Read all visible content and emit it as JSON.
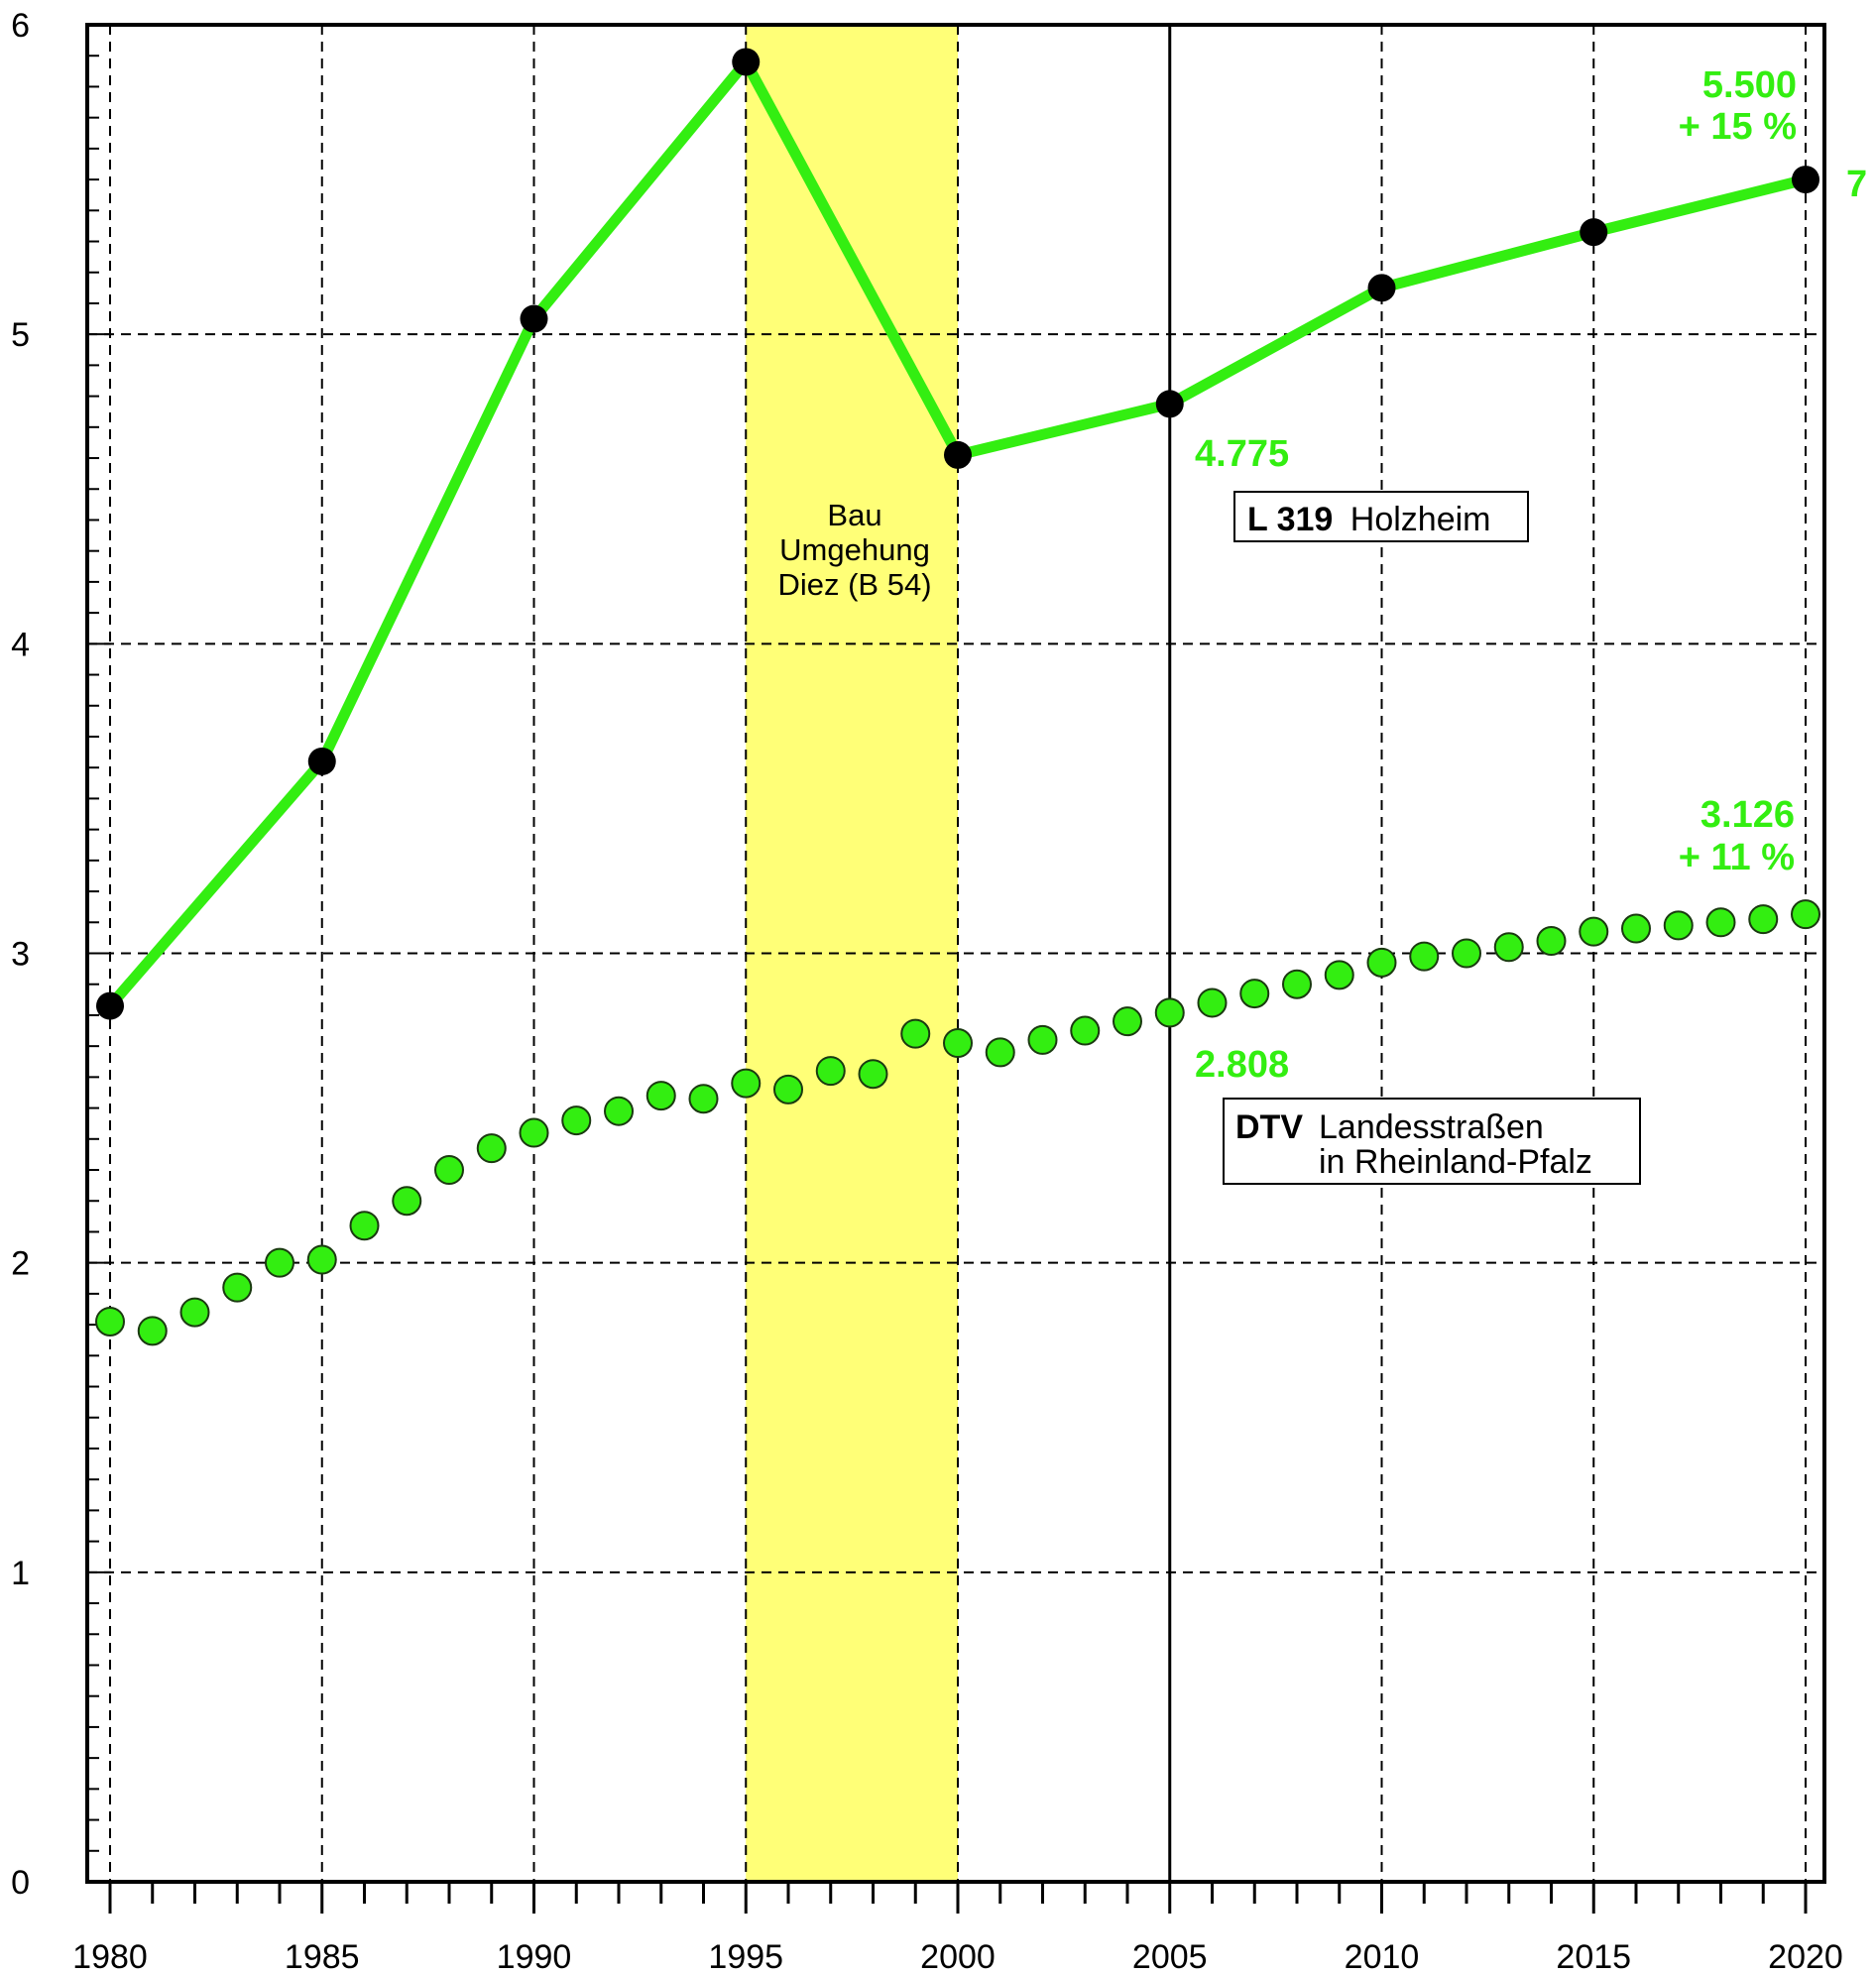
{
  "chart_data": {
    "type": "line",
    "xlim": [
      1980,
      2020
    ],
    "ylim": [
      0,
      6
    ],
    "grid": true,
    "x_ticks": [
      1980,
      1985,
      1990,
      1995,
      2000,
      2005,
      2010,
      2015,
      2020
    ],
    "y_ticks": [
      0,
      1,
      2,
      3,
      4,
      5,
      6
    ],
    "x_tick_labels": [
      "1980",
      "1985",
      "1990",
      "1995",
      "2000",
      "2005",
      "2010",
      "2015",
      "2020"
    ],
    "y_tick_labels": [
      "0",
      "1",
      "2",
      "3",
      "4",
      "5",
      "6"
    ],
    "shaded_band": {
      "from": 1995,
      "to": 2000,
      "color": "#ffff77",
      "label_lines": [
        "Bau",
        "Umgehung",
        "Diez (B 54)"
      ]
    },
    "series": [
      {
        "name": "L 319 Holzheim",
        "style": "line-with-markers",
        "color": "#33ee11",
        "marker_color": "#000000",
        "x": [
          1980,
          1985,
          1990,
          1995,
          2000,
          2005,
          2010,
          2015,
          2020
        ],
        "y": [
          2.83,
          3.62,
          5.05,
          5.88,
          4.61,
          4.775,
          5.15,
          5.33,
          5.5
        ]
      },
      {
        "name": "DTV Landesstraßen in Rheinland-Pfalz",
        "style": "dots",
        "color": "#33ee11",
        "x": [
          1980,
          1981,
          1982,
          1983,
          1984,
          1985,
          1986,
          1987,
          1988,
          1989,
          1990,
          1991,
          1992,
          1993,
          1994,
          1995,
          1996,
          1997,
          1998,
          1999,
          2000,
          2001,
          2002,
          2003,
          2004,
          2005,
          2006,
          2007,
          2008,
          2009,
          2010,
          2011,
          2012,
          2013,
          2014,
          2015,
          2016,
          2017,
          2018,
          2019,
          2020
        ],
        "y": [
          1.81,
          1.78,
          1.84,
          1.92,
          2.0,
          2.01,
          2.12,
          2.2,
          2.3,
          2.37,
          2.42,
          2.46,
          2.49,
          2.54,
          2.53,
          2.58,
          2.56,
          2.62,
          2.61,
          2.74,
          2.71,
          2.68,
          2.72,
          2.75,
          2.78,
          2.808,
          2.84,
          2.87,
          2.9,
          2.93,
          2.97,
          2.99,
          3.0,
          3.02,
          3.04,
          3.07,
          3.08,
          3.09,
          3.1,
          3.11,
          3.126
        ]
      }
    ],
    "annotations": {
      "holz_end_value": "5.500",
      "holz_end_pct": "+ 15 %",
      "holz_end_marker": "7",
      "holz_2005_value": "4.775",
      "dtv_end_value": "3.126",
      "dtv_end_pct": "+ 11 %",
      "dtv_2005_value": "2.808"
    },
    "legend_boxes": {
      "holz": {
        "bold": "L 319",
        "rest": "Holzheim"
      },
      "dtv": {
        "bold": "DTV",
        "line1": "Landesstraßen",
        "line2": "in Rheinland-Pfalz"
      }
    }
  }
}
